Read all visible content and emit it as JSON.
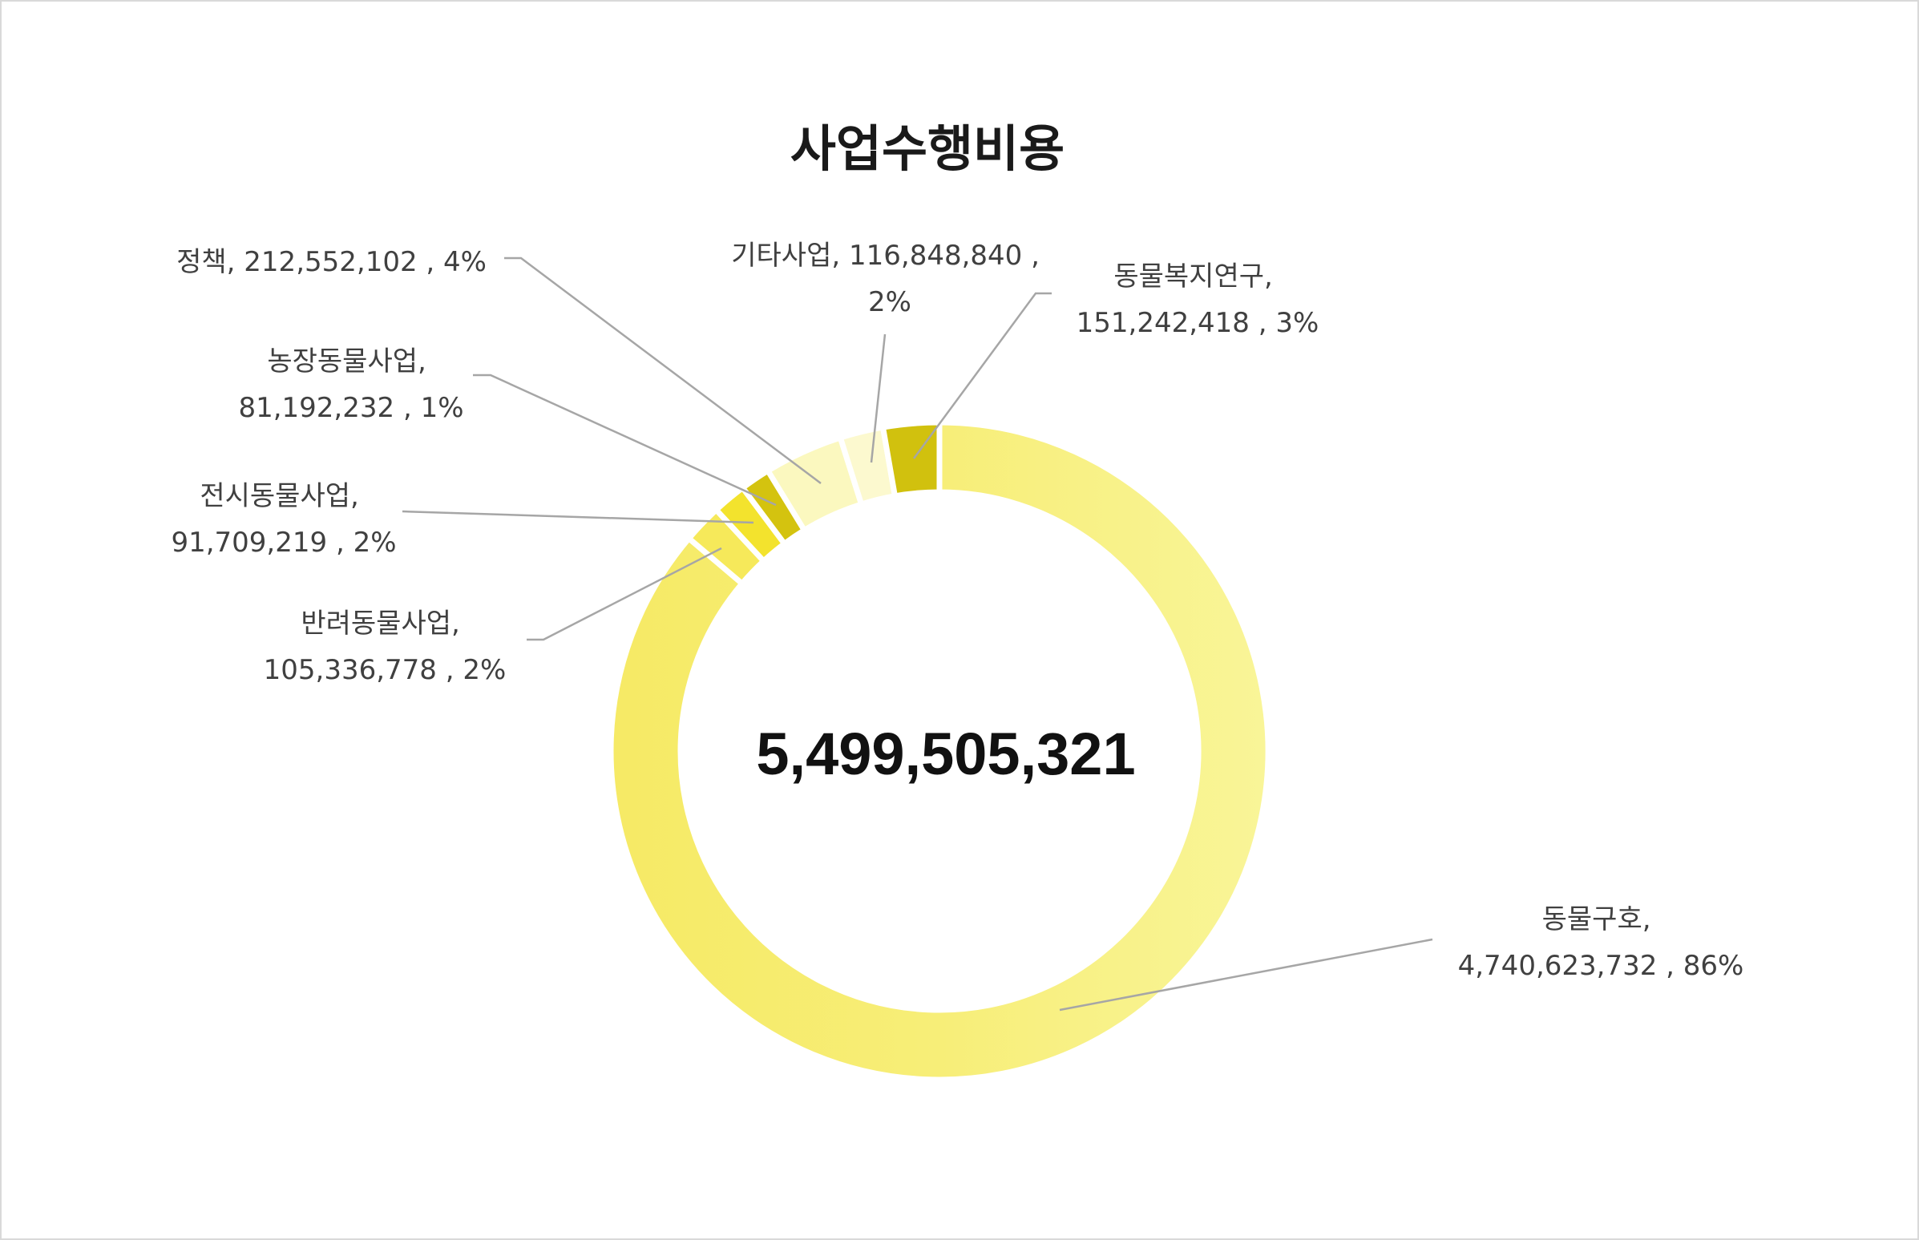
{
  "chart_data": {
    "type": "pie",
    "variant": "donut",
    "title": "사업수행비용",
    "center_label": "5,499,505,321",
    "series": [
      {
        "name": "동물구호",
        "value": 4740623732,
        "value_label": "4,740,623,732",
        "percent_label": "86%",
        "color": "#f8f391"
      },
      {
        "name": "반려동물사업",
        "value": 105336778,
        "value_label": "105,336,778",
        "percent_label": "2%",
        "color": "#f6e95a"
      },
      {
        "name": "전시동물사업",
        "value": 91709219,
        "value_label": "91,709,219",
        "percent_label": "2%",
        "color": "#f3e32d"
      },
      {
        "name": "농장동물사업",
        "value": 81192232,
        "value_label": "81,192,232",
        "percent_label": "1%",
        "color": "#d4c30f"
      },
      {
        "name": "정책",
        "value": 212552102,
        "value_label": "212,552,102",
        "percent_label": "4%",
        "color": "#fbf8bf"
      },
      {
        "name": "기타사업",
        "value": 116848840,
        "value_label": "116,848,840",
        "percent_label": "2%",
        "color": "#fcf9cf"
      },
      {
        "name": "동물복지연구",
        "value": 151242418,
        "value_label": "151,242,418",
        "percent_label": "3%",
        "color": "#d1c10e"
      }
    ]
  }
}
